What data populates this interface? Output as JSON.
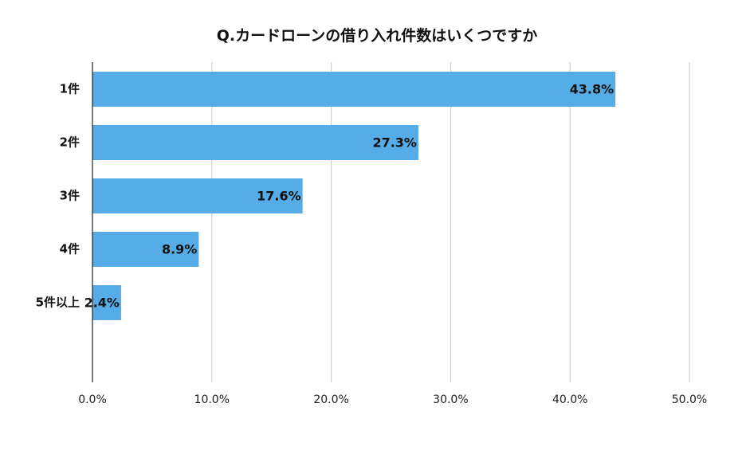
{
  "chart_data": {
    "type": "bar",
    "orientation": "horizontal",
    "title": "Q.カードローンの借り入れ件数はいくつですか",
    "categories": [
      "1件",
      "2件",
      "3件",
      "4件",
      "5件以上"
    ],
    "values": [
      43.8,
      27.3,
      17.6,
      8.9,
      2.4
    ],
    "value_labels": [
      "43.8%",
      "27.3%",
      "17.6%",
      "8.9%",
      "2.4%"
    ],
    "xlim": [
      0,
      50
    ],
    "xticks": [
      0,
      10,
      20,
      30,
      40,
      50
    ],
    "xtick_labels": [
      "0.0%",
      "10.0%",
      "20.0%",
      "30.0%",
      "40.0%",
      "50.0%"
    ],
    "xlabel": "",
    "ylabel": "",
    "grid": "vertical",
    "legend": "none",
    "bar_color": "#55ace6",
    "grid_color": "#c8c8c8",
    "axis_color": "#222222"
  }
}
